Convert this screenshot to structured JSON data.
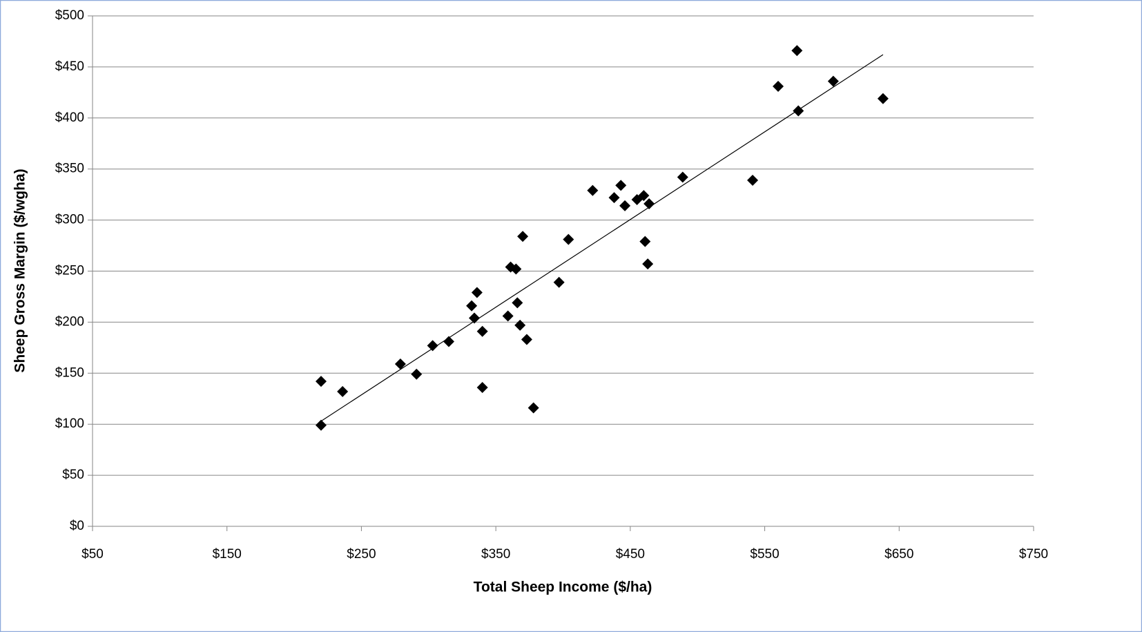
{
  "chart_data": {
    "type": "scatter",
    "x_label": "Total Sheep Income ($/ha)",
    "y_label": "Sheep Gross Margin ($/wgha)",
    "color": "#000000",
    "grid": true,
    "x": [
      220,
      220,
      236,
      279,
      291,
      303,
      315,
      332,
      334,
      336,
      340,
      340,
      359,
      361,
      365,
      366,
      368,
      370,
      373,
      378,
      397,
      404,
      422,
      438,
      443,
      446,
      455,
      460,
      461,
      463,
      464,
      489,
      541,
      560,
      574,
      575,
      601,
      638
    ],
    "y": [
      142,
      99,
      132,
      159,
      149,
      177,
      181,
      216,
      204,
      229,
      191,
      136,
      206,
      254,
      252,
      219,
      197,
      284,
      183,
      116,
      239,
      281,
      329,
      322,
      334,
      314,
      320,
      324,
      279,
      257,
      316,
      342,
      339,
      431,
      466,
      407,
      436,
      419
    ],
    "trendline": {
      "x": [
        220,
        638
      ],
      "y": [
        103,
        462
      ]
    },
    "xlim": [
      50,
      750
    ],
    "ylim": [
      0,
      500
    ],
    "xticks": [
      {
        "value": 50,
        "label": "$50"
      },
      {
        "value": 150,
        "label": "$150"
      },
      {
        "value": 250,
        "label": "$250"
      },
      {
        "value": 350,
        "label": "$350"
      },
      {
        "value": 450,
        "label": "$450"
      },
      {
        "value": 550,
        "label": "$550"
      },
      {
        "value": 650,
        "label": "$650"
      },
      {
        "value": 750,
        "label": "$750"
      }
    ],
    "yticks": [
      {
        "value": 0,
        "label": "$0"
      },
      {
        "value": 50,
        "label": "$50"
      },
      {
        "value": 100,
        "label": "$100"
      },
      {
        "value": 150,
        "label": "$150"
      },
      {
        "value": 200,
        "label": "$200"
      },
      {
        "value": 250,
        "label": "$250"
      },
      {
        "value": 300,
        "label": "$300"
      },
      {
        "value": 350,
        "label": "$350"
      },
      {
        "value": 400,
        "label": "$400"
      },
      {
        "value": 450,
        "label": "$450"
      },
      {
        "value": 500,
        "label": "$500"
      }
    ]
  }
}
